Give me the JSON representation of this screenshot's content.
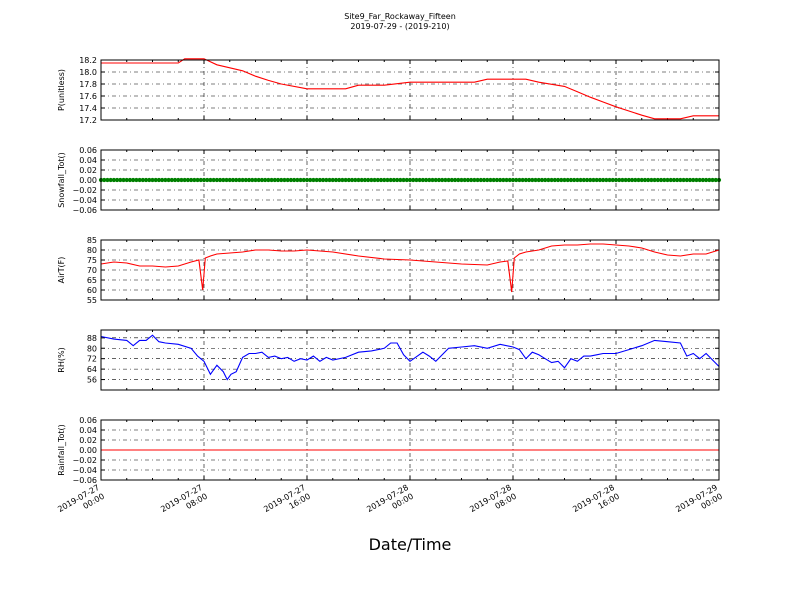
{
  "title": "Site9_Far_Rockaway_Fifteen",
  "subtitle": "2019-07-29 - (2019-210)",
  "xlabel": "Date/Time",
  "x_ticks": [
    {
      "line1": "2019-07-27",
      "line2": "00:00"
    },
    {
      "line1": "2019-07-27",
      "line2": "08:00"
    },
    {
      "line1": "2019-07-27",
      "line2": "16:00"
    },
    {
      "line1": "2019-07-28",
      "line2": "00:00"
    },
    {
      "line1": "2019-07-28",
      "line2": "08:00"
    },
    {
      "line1": "2019-07-28",
      "line2": "16:00"
    },
    {
      "line1": "2019-07-29",
      "line2": "00:00"
    }
  ],
  "chart_data": [
    {
      "type": "line",
      "ylabel": "P(unitless)",
      "ylim": [
        17.2,
        18.2
      ],
      "yticks": [
        "18.2",
        "18.0",
        "17.8",
        "17.6",
        "17.4",
        "17.2"
      ],
      "grid": true,
      "color": "#ff0000",
      "x_hours": [
        0,
        6,
        6.5,
        8,
        9,
        10,
        11,
        12,
        13,
        14,
        16,
        19,
        20,
        22,
        24,
        29,
        30,
        33,
        34,
        36,
        37,
        38,
        39,
        40,
        41,
        42,
        43,
        44,
        45,
        46,
        47,
        48
      ],
      "values": [
        18.15,
        18.15,
        18.22,
        18.22,
        18.12,
        18.07,
        18.02,
        17.93,
        17.86,
        17.8,
        17.72,
        17.72,
        17.78,
        17.78,
        17.83,
        17.83,
        17.88,
        17.88,
        17.83,
        17.76,
        17.67,
        17.58,
        17.5,
        17.42,
        17.35,
        17.28,
        17.22,
        17.22,
        17.22,
        17.27,
        17.27,
        17.27
      ]
    },
    {
      "type": "line",
      "ylabel": "Snowfall_Tot()",
      "ylim": [
        -0.06,
        0.06
      ],
      "yticks": [
        "0.06",
        "0.04",
        "0.02",
        "0.00",
        "−0.02",
        "−0.04",
        "−0.06"
      ],
      "grid": true,
      "color": "#008000",
      "marker": "dot",
      "x_hours": [
        0,
        48
      ],
      "values": [
        0,
        0
      ]
    },
    {
      "type": "line",
      "ylabel": "AirT(F)",
      "ylim": [
        55,
        85
      ],
      "yticks": [
        "85",
        "80",
        "75",
        "70",
        "65",
        "60",
        "55"
      ],
      "grid": true,
      "color": "#ff0000",
      "x_hours": [
        0,
        1,
        2,
        3,
        4,
        5,
        6,
        7,
        7.6,
        7.9,
        8.1,
        8.5,
        9,
        10,
        11,
        12,
        13,
        14,
        15,
        16,
        17,
        18,
        20,
        22,
        24,
        26,
        28,
        30,
        31,
        31.6,
        31.9,
        32.1,
        32.5,
        33,
        34,
        35,
        36,
        37,
        38,
        39,
        40,
        41,
        42,
        43,
        44,
        45,
        46,
        47,
        48
      ],
      "values": [
        73,
        74,
        73.5,
        72,
        72,
        71.5,
        72,
        74,
        75,
        60,
        76,
        77,
        78,
        78.5,
        79,
        80,
        80,
        79.5,
        79.5,
        80,
        79.5,
        79,
        77,
        75.5,
        75,
        74,
        73,
        72.5,
        74,
        74.5,
        59,
        76,
        78,
        79,
        80,
        82,
        82.5,
        82.5,
        83,
        83,
        82.5,
        82,
        81,
        79,
        77.5,
        77,
        78,
        78,
        80
      ]
    },
    {
      "type": "line",
      "ylabel": "RH(%)",
      "ylim": [
        48,
        94
      ],
      "yticks": [
        "88",
        "80",
        "72",
        "64",
        "56"
      ],
      "grid": true,
      "color": "#0000ff",
      "x_hours": [
        0,
        1,
        2,
        2.5,
        3,
        3.5,
        4,
        4.5,
        5,
        6,
        7,
        7.5,
        8,
        8.5,
        9,
        9.5,
        9.8,
        10.1,
        10.5,
        11,
        11.5,
        12,
        12.5,
        13,
        13.5,
        14,
        14.5,
        15,
        15.5,
        16,
        16.5,
        17,
        17.5,
        18,
        19,
        20,
        21,
        22,
        22.5,
        23,
        23.5,
        24,
        25,
        25.5,
        26,
        27,
        28,
        29,
        30,
        31,
        32,
        32.5,
        33,
        33.5,
        34,
        34.5,
        35,
        35.5,
        36,
        36.5,
        37,
        37.5,
        38,
        38.5,
        39,
        40,
        41,
        42,
        43,
        44,
        45,
        45.5,
        46,
        46.5,
        47,
        48
      ],
      "values": [
        89,
        87,
        86,
        82,
        86,
        86,
        90,
        85,
        84,
        83,
        80,
        74,
        70,
        60,
        67,
        62,
        56,
        60,
        62,
        73,
        76,
        76,
        77,
        73,
        74,
        72,
        73,
        70,
        72,
        71,
        74,
        70,
        73,
        71,
        73,
        77,
        78,
        80,
        84,
        84,
        75,
        70,
        77,
        74,
        70,
        80,
        81,
        82,
        80,
        83,
        81,
        79,
        72,
        77,
        75,
        72,
        69,
        70,
        65,
        72,
        70,
        74,
        74,
        75,
        76,
        76,
        79,
        82,
        86,
        85,
        84,
        74,
        76,
        72,
        76,
        66
      ]
    },
    {
      "type": "line",
      "ylabel": "Rainfall_Tot()",
      "ylim": [
        -0.06,
        0.06
      ],
      "yticks": [
        "0.06",
        "0.04",
        "0.02",
        "0.00",
        "−0.02",
        "−0.04",
        "−0.06"
      ],
      "grid": true,
      "color": "#ff0000",
      "x_hours": [
        0,
        48
      ],
      "values": [
        0,
        0
      ]
    }
  ]
}
